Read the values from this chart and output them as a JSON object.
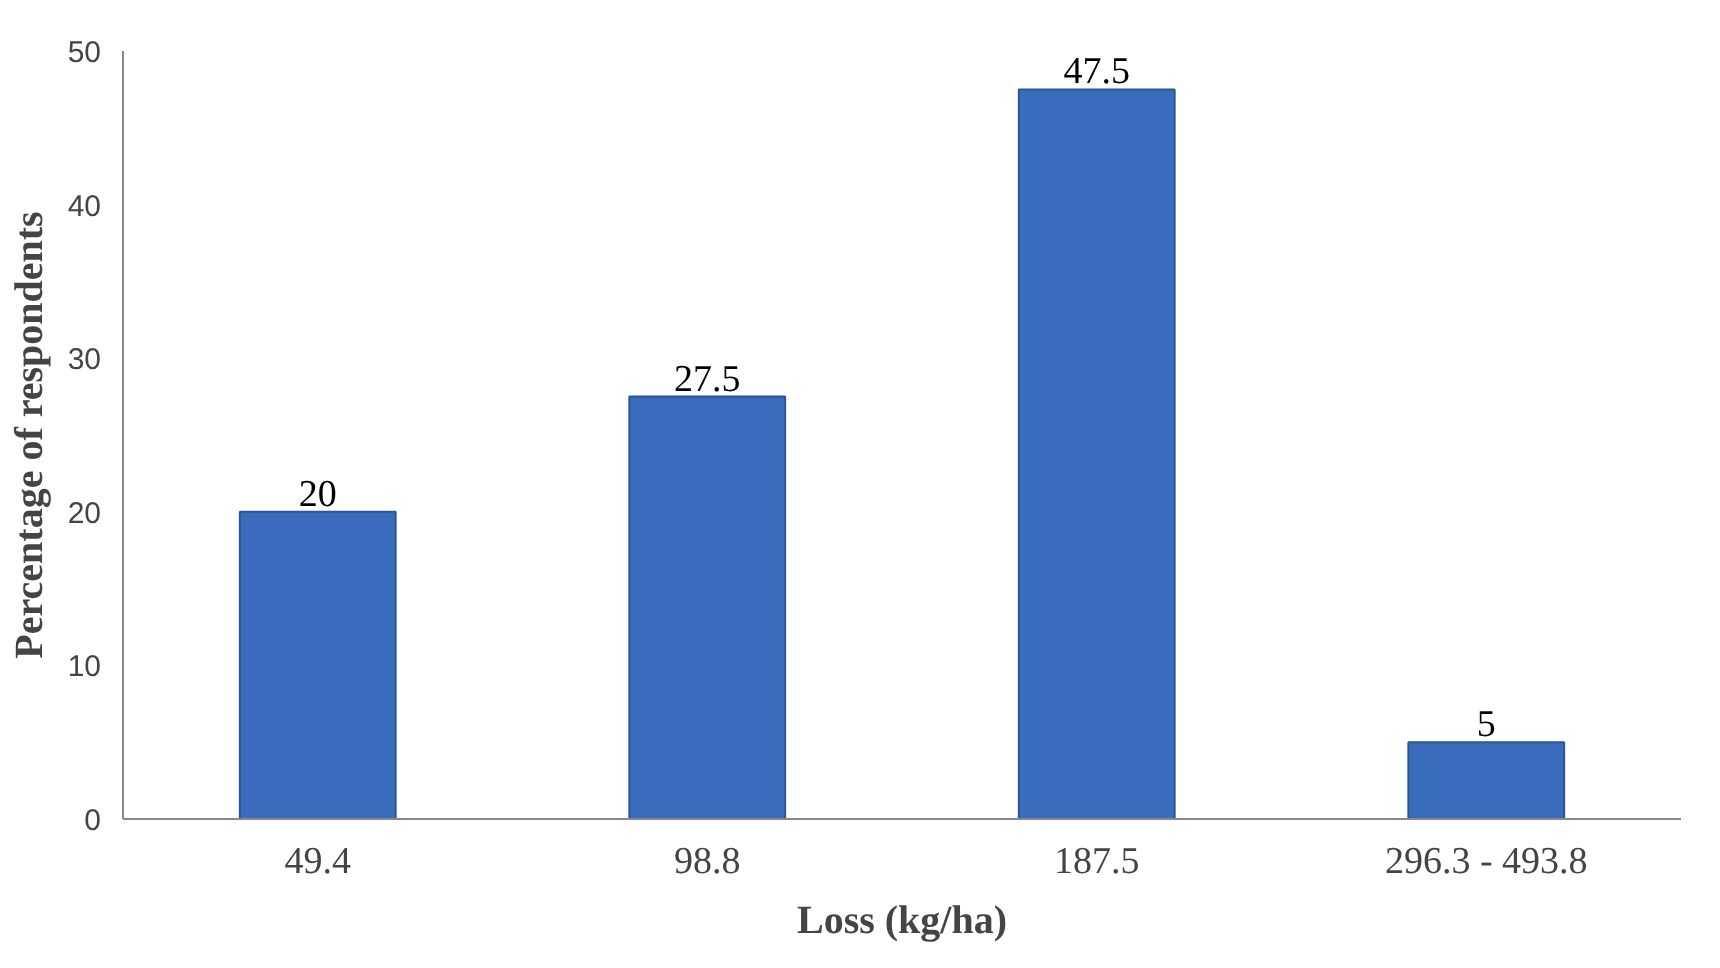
{
  "chart_data": {
    "type": "bar",
    "xlabel": "Loss (kg/ha)",
    "ylabel": "Percentage of respondents",
    "categories": [
      "49.4",
      "98.8",
      "187.5",
      "296.3 - 493.8"
    ],
    "values": [
      20,
      27.5,
      47.5,
      5
    ],
    "color": "#3a6cbd",
    "ylim": [
      0,
      50
    ],
    "yticks": [
      0,
      10,
      20,
      30,
      40,
      50
    ],
    "grid": false,
    "data_labels": true
  }
}
